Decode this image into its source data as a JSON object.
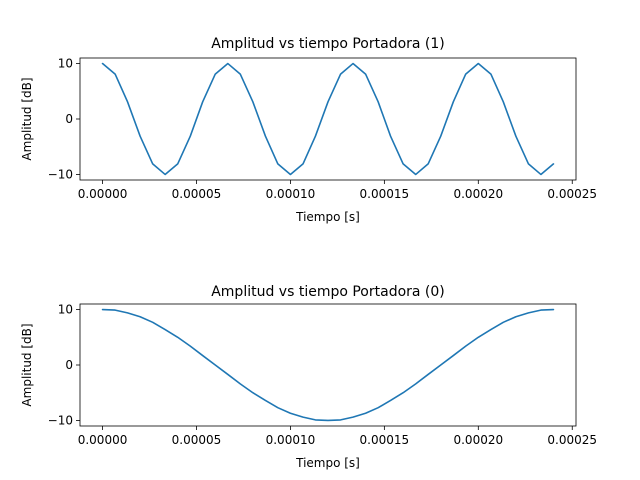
{
  "chart_data": [
    {
      "type": "line",
      "title": "Amplitud vs tiempo Portadora (1)",
      "xlabel": "Tiempo [s]",
      "ylabel": "Amplitud [dB]",
      "xlim": [
        -1.2e-05,
        0.000252
      ],
      "ylim": [
        -11,
        11
      ],
      "xticks": [
        0,
        5e-05,
        0.0001,
        0.00015,
        0.0002,
        0.00025
      ],
      "xtick_labels": [
        "0.00000",
        "0.00005",
        "0.00010",
        "0.00015",
        "0.00020",
        "0.00025"
      ],
      "yticks": [
        -10,
        0,
        10
      ],
      "ytick_labels": [
        "−10",
        "0",
        "10"
      ],
      "grid": false,
      "color": "#1f77b4",
      "series": [
        {
          "x": [
            0,
            6.7e-06,
            1.33e-05,
            2e-05,
            2.67e-05,
            3.33e-05,
            4e-05,
            4.67e-05,
            5.33e-05,
            6e-05,
            6.67e-05,
            7.33e-05,
            8e-05,
            8.67e-05,
            9.33e-05,
            0.0001,
            0.0001067,
            0.0001133,
            0.00012,
            0.0001267,
            0.0001333,
            0.00014,
            0.0001467,
            0.0001533,
            0.00016,
            0.0001667,
            0.0001733,
            0.00018,
            0.0001867,
            0.0001933,
            0.0002,
            0.0002067,
            0.0002133,
            0.00022,
            0.0002267,
            0.0002333,
            0.00024
          ],
          "y": [
            10,
            8.1,
            3.1,
            -3.1,
            -8.1,
            -10,
            -8.1,
            -3.1,
            3.1,
            8.1,
            10,
            8.1,
            3.1,
            -3.1,
            -8.1,
            -10,
            -8.1,
            -3.1,
            3.1,
            8.1,
            10,
            8.1,
            3.1,
            -3.1,
            -8.1,
            -10,
            -8.1,
            -3.1,
            3.1,
            8.1,
            10,
            8.1,
            3.1,
            -3.1,
            -8.1,
            -10,
            -8.1
          ]
        }
      ]
    },
    {
      "type": "line",
      "title": "Amplitud vs tiempo Portadora (0)",
      "xlabel": "Tiempo [s]",
      "ylabel": "Amplitud [dB]",
      "xlim": [
        -1.2e-05,
        0.000252
      ],
      "ylim": [
        -11,
        11
      ],
      "xticks": [
        0,
        5e-05,
        0.0001,
        0.00015,
        0.0002,
        0.00025
      ],
      "xtick_labels": [
        "0.00000",
        "0.00005",
        "0.00010",
        "0.00015",
        "0.00020",
        "0.00025"
      ],
      "yticks": [
        -10,
        0,
        10
      ],
      "ytick_labels": [
        "−10",
        "0",
        "10"
      ],
      "grid": false,
      "color": "#1f77b4",
      "series": [
        {
          "x": [
            0,
            6.7e-06,
            1.33e-05,
            2e-05,
            2.67e-05,
            3.33e-05,
            4e-05,
            4.67e-05,
            5.33e-05,
            6e-05,
            6.67e-05,
            7.33e-05,
            8e-05,
            8.67e-05,
            9.33e-05,
            0.0001,
            0.0001067,
            0.0001133,
            0.00012,
            0.0001267,
            0.0001333,
            0.00014,
            0.0001467,
            0.0001533,
            0.00016,
            0.0001667,
            0.0001733,
            0.00018,
            0.0001867,
            0.0001933,
            0.0002,
            0.0002067,
            0.0002133,
            0.00022,
            0.0002267,
            0.0002333,
            0.00024
          ],
          "y": [
            10,
            9.9,
            9.4,
            8.7,
            7.7,
            6.4,
            5,
            3.4,
            1.7,
            0,
            -1.7,
            -3.4,
            -5,
            -6.4,
            -7.7,
            -8.7,
            -9.4,
            -9.9,
            -10,
            -9.9,
            -9.4,
            -8.7,
            -7.7,
            -6.4,
            -5,
            -3.4,
            -1.7,
            0,
            1.7,
            3.4,
            5,
            6.4,
            7.7,
            8.7,
            9.4,
            9.9,
            10
          ]
        }
      ]
    }
  ]
}
